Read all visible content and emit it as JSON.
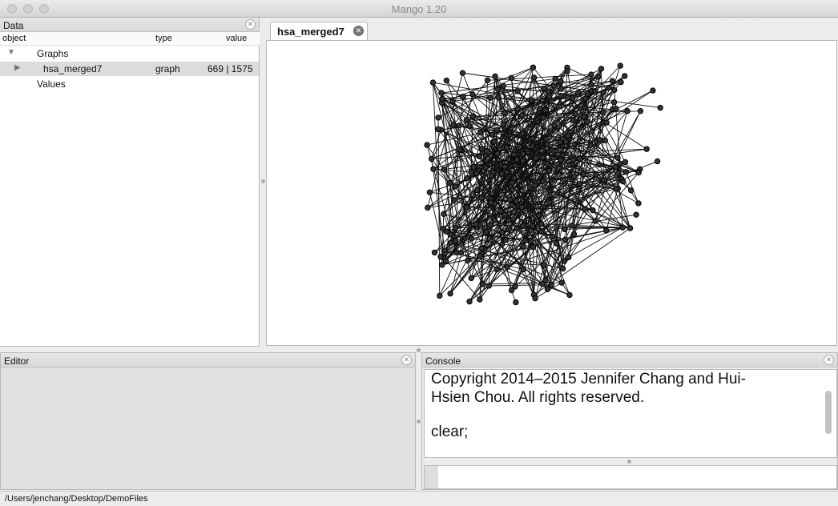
{
  "window": {
    "title": "Mango 1.20"
  },
  "data_panel": {
    "title": "Data",
    "columns": {
      "object": "object",
      "type": "type",
      "value": "value"
    },
    "graphs_label": "Graphs",
    "graph_row": {
      "name": "hsa_merged7",
      "type": "graph",
      "value": "669 | 1575"
    },
    "values_label": "Values"
  },
  "graph_view": {
    "tab_label": "hsa_merged7"
  },
  "editor": {
    "title": "Editor"
  },
  "console": {
    "title": "Console",
    "line1": "Copyright 2014–2015 Jennifer Chang and Hui-",
    "line2": "Hsien Chou. All rights reserved.",
    "line3": "clear;"
  },
  "status": {
    "path": "/Users/jenchang/Desktop/DemoFiles"
  }
}
